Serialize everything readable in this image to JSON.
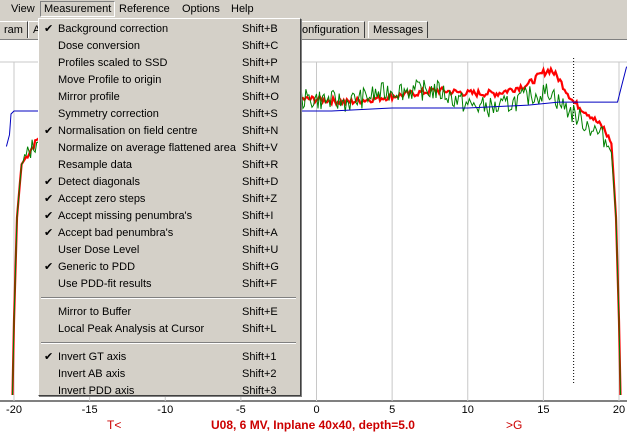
{
  "menubar": {
    "items": [
      "View",
      "Measurement",
      "Reference",
      "Options",
      "Help"
    ]
  },
  "tabs": [
    "ram",
    "A",
    "onfiguration",
    "Messages"
  ],
  "menu": {
    "groups": [
      [
        {
          "label": "Background correction",
          "shortcut": "Shift+B",
          "checked": true
        },
        {
          "label": "Dose conversion",
          "shortcut": "Shift+C",
          "checked": false
        },
        {
          "label": "Profiles scaled to SSD",
          "shortcut": "Shift+P",
          "checked": false
        },
        {
          "label": "Move Profile to origin",
          "shortcut": "Shift+M",
          "checked": false
        },
        {
          "label": "Mirror profile",
          "shortcut": "Shift+O",
          "checked": false
        },
        {
          "label": "Symmetry correction",
          "shortcut": "Shift+S",
          "checked": false
        },
        {
          "label": "Normalisation on field centre",
          "shortcut": "Shift+N",
          "checked": true
        },
        {
          "label": "Normalize on average flattened area",
          "shortcut": "Shift+V",
          "checked": false
        },
        {
          "label": "Resample data",
          "shortcut": "Shift+R",
          "checked": false
        },
        {
          "label": "Detect diagonals",
          "shortcut": "Shift+D",
          "checked": true
        },
        {
          "label": "Accept zero steps",
          "shortcut": "Shift+Z",
          "checked": true
        },
        {
          "label": "Accept missing penumbra's",
          "shortcut": "Shift+I",
          "checked": true
        },
        {
          "label": "Accept bad penumbra's",
          "shortcut": "Shift+A",
          "checked": true
        },
        {
          "label": "User Dose Level",
          "shortcut": "Shift+U",
          "checked": false
        },
        {
          "label": "Generic to PDD",
          "shortcut": "Shift+G",
          "checked": true
        },
        {
          "label": "Use PDD-fit results",
          "shortcut": "Shift+F",
          "checked": false
        }
      ],
      [
        {
          "label": "Mirror to Buffer",
          "shortcut": "Shift+E",
          "checked": false
        },
        {
          "label": "Local Peak Analysis at Cursor",
          "shortcut": "Shift+L",
          "checked": false
        }
      ],
      [
        {
          "label": "Invert GT axis",
          "shortcut": "Shift+1",
          "checked": true
        },
        {
          "label": "Invert AB axis",
          "shortcut": "Shift+2",
          "checked": false
        },
        {
          "label": "Invert PDD axis",
          "shortcut": "Shift+3",
          "checked": false
        }
      ]
    ]
  },
  "chart_data": {
    "type": "line",
    "x_ticks": [
      -20,
      -15,
      -10,
      -5,
      0,
      5,
      10,
      15,
      20
    ],
    "xlim": [
      -20.5,
      20.5
    ],
    "ylim": [
      0,
      1.2
    ],
    "left_label": "T<",
    "right_label": ">G",
    "title": "U08, 6 MV, Inplane 40x40, depth=5.0",
    "colors": {
      "red": "#ff0000",
      "green": "#008000",
      "blue": "#0000c0",
      "title": "#cc0000"
    },
    "cursor_x": 17,
    "series": [
      {
        "color": "red",
        "x": [
          -20.1,
          -20,
          -19.8,
          -19.5,
          -19,
          -18.5,
          -18,
          -17,
          -15,
          -10,
          -5,
          -1,
          0,
          2,
          5,
          8,
          10,
          12,
          14,
          15,
          15.5,
          16,
          17,
          18,
          19,
          19.5,
          19.8,
          20,
          20.1
        ],
        "y": [
          0,
          0.25,
          0.6,
          0.78,
          0.82,
          0.86,
          0.9,
          0.94,
          0.98,
          1.0,
          1.0,
          1.0,
          1.0,
          0.99,
          1.01,
          1.03,
          1.02,
          1.02,
          1.05,
          1.09,
          1.1,
          1.07,
          0.99,
          0.95,
          0.9,
          0.85,
          0.6,
          0.25,
          0
        ]
      },
      {
        "color": "green",
        "x": [
          -20.1,
          -20,
          -19.8,
          -19.5,
          -19,
          -18.5,
          -18,
          -17,
          -15,
          -10,
          -5,
          -1,
          0,
          2,
          5,
          8,
          10,
          12,
          14,
          15,
          15.5,
          16,
          17,
          18,
          19,
          19.5,
          19.8,
          20,
          20.1
        ],
        "y": [
          0,
          0.25,
          0.6,
          0.78,
          0.82,
          0.86,
          0.9,
          0.94,
          0.98,
          1.0,
          1.0,
          1.0,
          1.0,
          0.99,
          1.03,
          1.03,
          0.98,
          0.97,
          1.01,
          1.02,
          1.03,
          0.99,
          0.95,
          0.91,
          0.87,
          0.82,
          0.6,
          0.25,
          0
        ]
      },
      {
        "color": "blue",
        "x": [
          -20.5,
          -20.3,
          -20.2,
          -20,
          -19.6,
          -19,
          -18,
          -17,
          -15,
          -10,
          -5,
          -1,
          0,
          1,
          5,
          10,
          14,
          16,
          17,
          18,
          19,
          19.9,
          20,
          20.2,
          20.5
        ],
        "y": [
          0.84,
          0.88,
          0.95,
          0.96,
          0.96,
          0.96,
          0.96,
          0.96,
          0.96,
          0.96,
          0.96,
          0.96,
          0.96,
          0.96,
          0.97,
          0.97,
          0.98,
          0.99,
          0.99,
          0.99,
          0.99,
          0.99,
          1.01,
          1.05,
          1.11
        ]
      }
    ]
  }
}
